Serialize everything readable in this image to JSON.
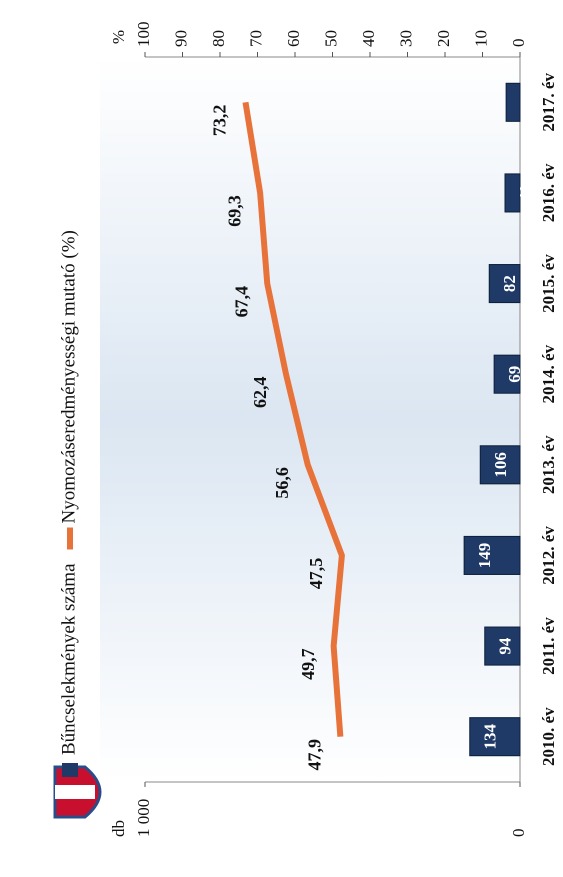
{
  "chart_data": {
    "type": "bar-line",
    "categories": [
      "2010. év",
      "2011. év",
      "2012. év",
      "2013. év",
      "2014. év",
      "2015. év",
      "2016. év",
      "2017. év"
    ],
    "y_label": "db",
    "y2_label": "%",
    "ylim": [
      0,
      1000
    ],
    "yticks": [
      0,
      {
        "value": 1000,
        "label": "1 000"
      }
    ],
    "y2lim": [
      0,
      100
    ],
    "y2ticks": [
      0,
      10,
      20,
      30,
      40,
      50,
      60,
      70,
      80,
      90,
      100
    ],
    "series": [
      {
        "name": "Bűncselekmények száma",
        "type": "bar",
        "color": "#1f3a66",
        "values": [
          134,
          94,
          149,
          106,
          69,
          82,
          40,
          37
        ]
      },
      {
        "name": "Nyomozáseredményességi mutató (%)",
        "type": "line",
        "axis": "y2",
        "color": "#e8733a",
        "values": [
          47.9,
          49.7,
          47.5,
          56.6,
          62.4,
          67.4,
          69.3,
          73.2
        ],
        "value_labels": [
          "47,9",
          "49,7",
          "47,5",
          "56,6",
          "62,4",
          "67,4",
          "69,3",
          "73,2"
        ]
      }
    ]
  }
}
